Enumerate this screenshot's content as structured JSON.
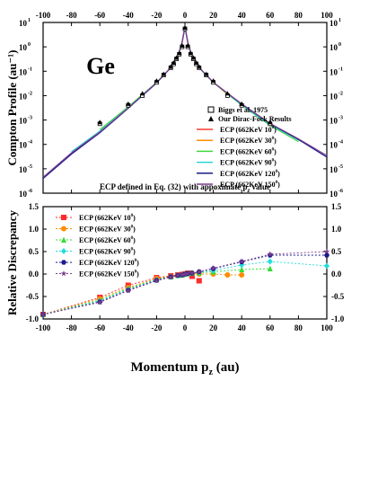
{
  "chart_data": [
    {
      "type": "line",
      "panel": "compton-profile",
      "element_label": "Ge",
      "ylabel": "Compton Profile (au⁻¹)",
      "yscale": "log",
      "xlim": [
        -100,
        100
      ],
      "ylim": [
        1e-06,
        10
      ],
      "x_ticks": [
        -100,
        -80,
        -60,
        -40,
        -20,
        0,
        20,
        40,
        60,
        80,
        100
      ],
      "x_tick_labels": [
        "-100",
        "-80",
        "-60",
        "-40",
        "-20",
        "0",
        "20",
        "40",
        "60",
        "80",
        "100"
      ],
      "y_ticks": [
        1e-06,
        1e-05,
        0.0001,
        0.001,
        0.01,
        0.1,
        1,
        10
      ],
      "y_tick_labels": [
        {
          "base": "10",
          "exp": "-6"
        },
        {
          "base": "10",
          "exp": "-5"
        },
        {
          "base": "10",
          "exp": "-4"
        },
        {
          "base": "10",
          "exp": "-3"
        },
        {
          "base": "10",
          "exp": "-2"
        },
        {
          "base": "10",
          "exp": "-1"
        },
        {
          "base": "10",
          "exp": "0"
        },
        {
          "base": "10",
          "exp": "1"
        }
      ],
      "annotation": "ECP defined in Eq. (32) with appoximate p",
      "annotation_subscript": "z",
      "annotation_tail": " value",
      "legend_placement": "lower-right",
      "points": [
        {
          "name": "Biggs et al. 1975",
          "marker": "open-square",
          "x": [
            -60,
            -40,
            -30,
            -20,
            -15,
            -10,
            -8,
            -6,
            -4,
            -2,
            0,
            2,
            4,
            6,
            8,
            10,
            15,
            20,
            30,
            40,
            60
          ],
          "y": [
            0.0007,
            0.004,
            0.01,
            0.035,
            0.07,
            0.14,
            0.2,
            0.32,
            0.5,
            1.0,
            5.5,
            1.0,
            0.5,
            0.32,
            0.2,
            0.14,
            0.07,
            0.035,
            0.01,
            0.004,
            0.0007
          ]
        },
        {
          "name": "Our Dirac-Fock Results",
          "marker": "filled-triangle",
          "x": [
            -60,
            -40,
            -30,
            -20,
            -15,
            -10,
            -8,
            -6,
            -4,
            -2,
            0,
            2,
            4,
            6,
            8,
            10,
            15,
            20,
            30,
            40,
            60
          ],
          "y": [
            0.0008,
            0.0045,
            0.012,
            0.04,
            0.075,
            0.15,
            0.22,
            0.35,
            0.55,
            1.1,
            6.0,
            1.1,
            0.55,
            0.35,
            0.22,
            0.15,
            0.075,
            0.04,
            0.012,
            0.0045,
            0.0008
          ]
        }
      ],
      "series": [
        {
          "name": "ECP (662KeV 10°)",
          "label_main": "ECP (662KeV 10",
          "deg": "0",
          "color": "#ff3b30",
          "x": [
            -4,
            -2,
            0,
            2,
            4,
            6,
            8,
            10
          ],
          "y": [
            0.6,
            1.5,
            6.5,
            1.6,
            0.6,
            0.3,
            0.2,
            0.15
          ]
        },
        {
          "name": "ECP (662KeV 30°)",
          "label_main": "ECP (662KeV 30",
          "deg": "0",
          "color": "#ff8c00",
          "x": [
            -25,
            -20,
            -10,
            -5,
            -2,
            0,
            2,
            5,
            10,
            20,
            30,
            40
          ],
          "y": [
            0.018,
            0.035,
            0.14,
            0.4,
            1.5,
            6.5,
            1.5,
            0.4,
            0.14,
            0.035,
            0.011,
            0.0045
          ]
        },
        {
          "name": "ECP (662KeV 60°)",
          "label_main": "ECP (662KeV 60",
          "deg": "0",
          "color": "#3fd63f",
          "x": [
            -60,
            -40,
            -20,
            -10,
            -5,
            -2,
            0,
            2,
            5,
            10,
            20,
            40,
            60,
            80
          ],
          "y": [
            0.0004,
            0.0035,
            0.035,
            0.14,
            0.4,
            1.5,
            6.5,
            1.5,
            0.4,
            0.14,
            0.035,
            0.004,
            0.0006,
            0.00013
          ]
        },
        {
          "name": "ECP (662KeV 90°)",
          "label_main": "ECP (662KeV 90",
          "deg": "0",
          "color": "#2fd3d3",
          "x": [
            -80,
            -60,
            -40,
            -20,
            -10,
            -5,
            -2,
            0,
            2,
            5,
            10,
            20,
            40,
            60,
            80,
            85
          ],
          "y": [
            5e-05,
            0.00035,
            0.0032,
            0.034,
            0.14,
            0.4,
            1.5,
            6.5,
            1.5,
            0.4,
            0.14,
            0.035,
            0.0042,
            0.00065,
            0.00015,
            0.00011
          ]
        },
        {
          "name": "ECP (662KeV 120°)",
          "label_main": "ECP (662KeV 120",
          "deg": "0",
          "color": "#1a1a8c",
          "x": [
            -100,
            -80,
            -60,
            -40,
            -20,
            -10,
            -5,
            -2,
            0,
            2,
            5,
            10,
            20,
            40,
            60,
            80,
            100
          ],
          "y": [
            4e-06,
            4e-05,
            0.0003,
            0.003,
            0.033,
            0.14,
            0.4,
            1.5,
            6.5,
            1.5,
            0.4,
            0.14,
            0.035,
            0.0045,
            0.0007,
            0.00016,
            3e-05
          ]
        },
        {
          "name": "ECP (662KeV 150°)",
          "label_main": "ECP (662KeV 150",
          "deg": "0",
          "color": "#7a3a8c",
          "x": [
            -100,
            -80,
            -60,
            -40,
            -20,
            -10,
            -5,
            -2,
            0,
            2,
            5,
            10,
            20,
            40,
            60,
            80,
            100
          ],
          "y": [
            4.5e-06,
            4.5e-05,
            0.00032,
            0.0031,
            0.034,
            0.14,
            0.4,
            1.5,
            6.5,
            1.5,
            0.4,
            0.14,
            0.035,
            0.0046,
            0.00072,
            0.00017,
            3.5e-05
          ]
        }
      ]
    },
    {
      "type": "scatter",
      "panel": "relative-discrepancy",
      "ylabel": "Relative Discrepancy",
      "xlabel": "Momentum p",
      "xlabel_subscript": "z",
      "xlabel_unit": " (au)",
      "xlim": [
        -100,
        100
      ],
      "ylim": [
        -1.0,
        1.5
      ],
      "x_ticks": [
        -100,
        -80,
        -60,
        -40,
        -20,
        0,
        20,
        40,
        60,
        80,
        100
      ],
      "x_tick_labels": [
        "-100",
        "-80",
        "-60",
        "-40",
        "-20",
        "0",
        "20",
        "40",
        "60",
        "80",
        "100"
      ],
      "y_ticks": [
        -1.0,
        -0.5,
        0.0,
        0.5,
        1.0,
        1.5
      ],
      "y_tick_labels": [
        "-1.0",
        "-0.5",
        "0.0",
        "0.5",
        "1.0",
        "1.5"
      ],
      "legend_placement": "upper-left",
      "series": [
        {
          "name": "ECP (662KeV 10°)",
          "label_main": "ECP (662KeV 10",
          "deg": "0",
          "color": "#ff2a2a",
          "marker": "square",
          "x": [
            -100,
            -60,
            -40,
            -20,
            -10,
            -5,
            -2,
            0,
            2,
            5,
            10
          ],
          "y": [
            -0.9,
            -0.52,
            -0.25,
            -0.08,
            -0.04,
            -0.02,
            -0.01,
            0.0,
            0.02,
            -0.05,
            -0.15
          ]
        },
        {
          "name": "ECP (662KeV 30°)",
          "label_main": "ECP (662KeV 30",
          "deg": "0",
          "color": "#ff8c00",
          "marker": "circle",
          "x": [
            -100,
            -60,
            -40,
            -20,
            -10,
            -5,
            -2,
            0,
            2,
            5,
            10,
            20,
            30,
            40
          ],
          "y": [
            -0.9,
            -0.55,
            -0.3,
            -0.1,
            -0.05,
            -0.03,
            -0.02,
            0.0,
            0.01,
            0.02,
            0.0,
            0.0,
            -0.02,
            -0.02
          ]
        },
        {
          "name": "ECP (662KeV 60°)",
          "label_main": "ECP (662KeV 60",
          "deg": "0",
          "color": "#33dd33",
          "marker": "triangle",
          "x": [
            -100,
            -60,
            -40,
            -20,
            -10,
            -5,
            -2,
            0,
            2,
            5,
            10,
            20,
            40,
            60
          ],
          "y": [
            -0.9,
            -0.58,
            -0.32,
            -0.12,
            -0.06,
            -0.03,
            -0.02,
            0.0,
            0.01,
            0.02,
            0.03,
            0.05,
            0.1,
            0.12
          ]
        },
        {
          "name": "ECP (662KeV 90°)",
          "label_main": "ECP (662KeV 90",
          "deg": "0",
          "color": "#22dddd",
          "marker": "diamond",
          "x": [
            -100,
            -60,
            -40,
            -20,
            -10,
            -5,
            -2,
            0,
            2,
            5,
            10,
            20,
            40,
            60,
            100
          ],
          "y": [
            -0.9,
            -0.6,
            -0.34,
            -0.13,
            -0.06,
            -0.03,
            -0.02,
            0.0,
            0.01,
            0.02,
            0.04,
            0.08,
            0.2,
            0.28,
            0.18
          ]
        },
        {
          "name": "ECP (662KeV 120°)",
          "label_main": "ECP (662KeV 120",
          "deg": "0",
          "color": "#1a1a8c",
          "marker": "hexagon",
          "x": [
            -100,
            -60,
            -40,
            -20,
            -10,
            -5,
            -2,
            0,
            2,
            5,
            10,
            20,
            40,
            60,
            100
          ],
          "y": [
            -0.9,
            -0.62,
            -0.36,
            -0.14,
            -0.06,
            -0.03,
            -0.02,
            0.0,
            0.01,
            0.02,
            0.05,
            0.12,
            0.27,
            0.42,
            0.42
          ]
        },
        {
          "name": "ECP (662KeV 150°)",
          "label_main": "ECP (662KeV 150",
          "deg": "0",
          "color": "#7a3a8c",
          "marker": "star",
          "x": [
            -100,
            -60,
            -40,
            -20,
            -10,
            -5,
            -2,
            0,
            2,
            5,
            10,
            20,
            40,
            60,
            100
          ],
          "y": [
            -0.9,
            -0.63,
            -0.37,
            -0.15,
            -0.07,
            -0.03,
            -0.02,
            0.0,
            0.01,
            0.02,
            0.05,
            0.13,
            0.28,
            0.44,
            0.5
          ]
        }
      ]
    }
  ]
}
